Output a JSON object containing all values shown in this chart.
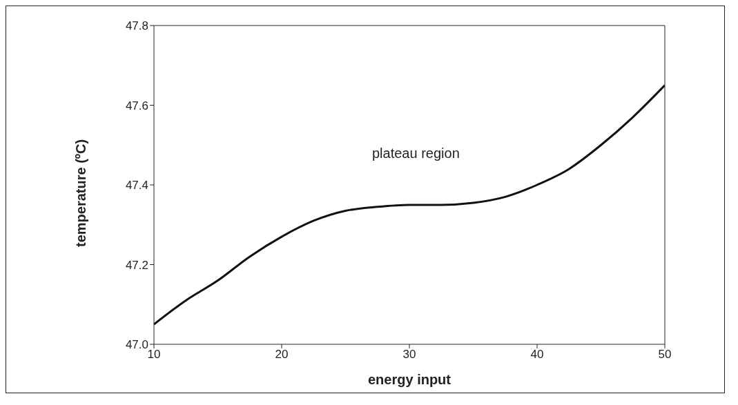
{
  "chart_data": {
    "type": "line",
    "xlabel": "energy input",
    "ylabel": "temperature (ºC)",
    "annotations": [
      "plateau region"
    ],
    "x": [
      10,
      12.5,
      15,
      17.5,
      20,
      22.5,
      25,
      27.5,
      30,
      32.5,
      35,
      37.5,
      40,
      42.5,
      45,
      47.5,
      50
    ],
    "series": [
      {
        "color": "#111111",
        "values": [
          47.05,
          47.11,
          47.16,
          47.22,
          47.27,
          47.31,
          47.335,
          47.345,
          47.35,
          47.35,
          47.355,
          47.37,
          47.4,
          47.44,
          47.5,
          47.57,
          47.65
        ]
      }
    ],
    "xlim": [
      10,
      50
    ],
    "xticks": [
      10,
      20,
      30,
      40,
      50
    ],
    "ylim": [
      47,
      47.8
    ],
    "yticks": [
      {
        "value": 47,
        "label": "47.0"
      },
      47.2,
      47.4,
      47.6,
      47.8
    ],
    "grid": false,
    "legend": false,
    "marker": "none",
    "line_style": "solid"
  }
}
